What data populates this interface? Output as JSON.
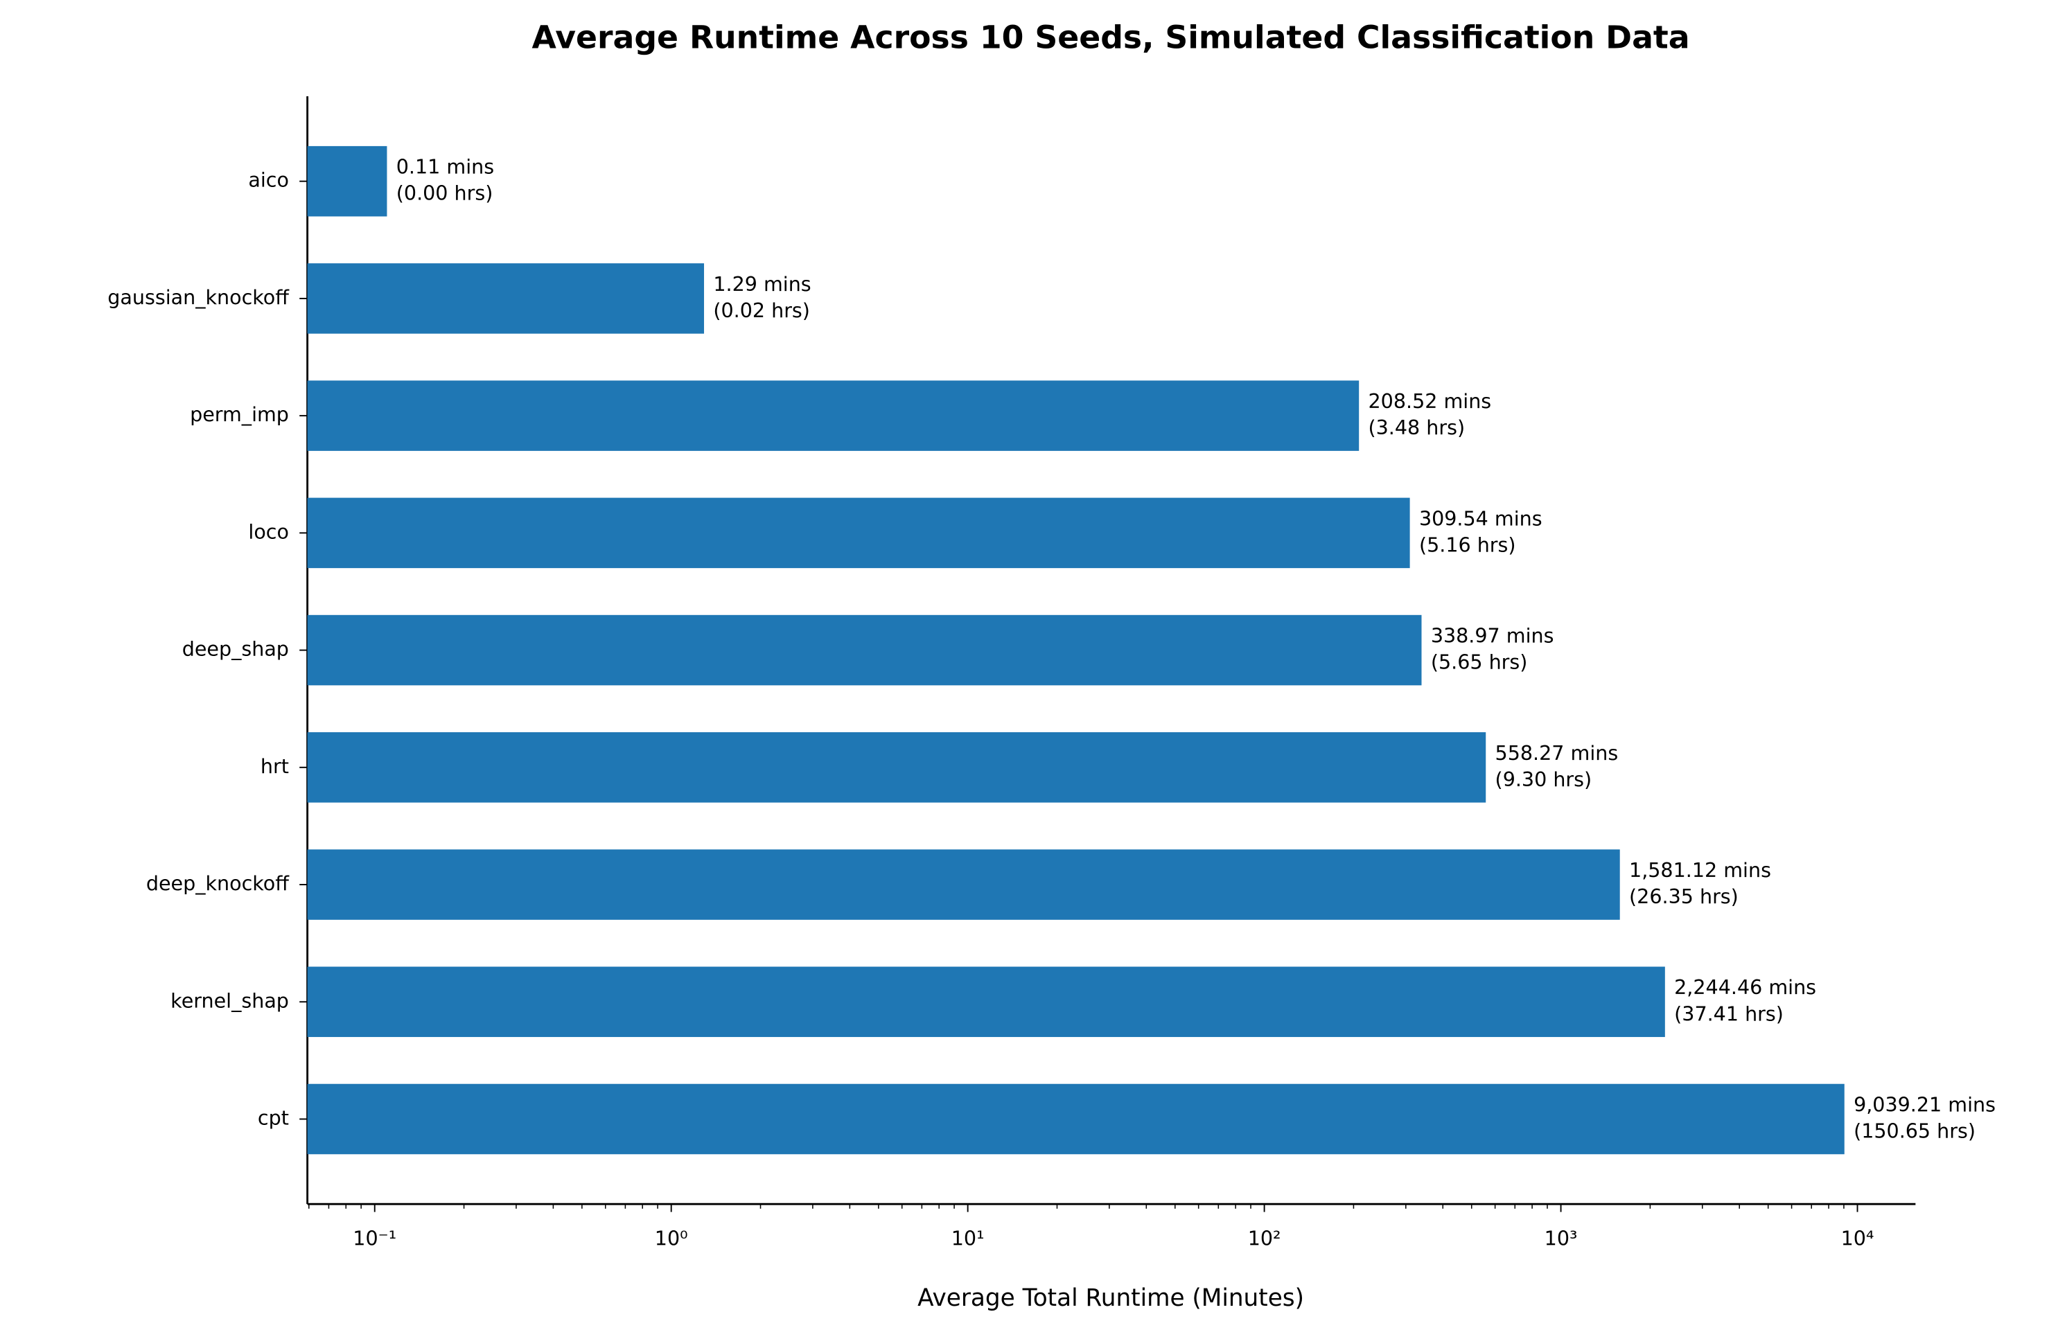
{
  "chart_data": {
    "type": "barh",
    "title": "Average Runtime Across 10 Seeds, Simulated Classification Data",
    "x_label": "Average Total Runtime (Minutes)",
    "categories": [
      "aico",
      "gaussian_knockoff",
      "perm_imp",
      "loco",
      "deep_shap",
      "hrt",
      "deep_knockoff",
      "kernel_shap",
      "cpt"
    ],
    "values": [
      0.11,
      1.29,
      208.52,
      309.54,
      338.97,
      558.27,
      1581.12,
      2244.46,
      9039.21
    ],
    "value_labels": [
      [
        "0.11 mins",
        "(0.00 hrs)"
      ],
      [
        "1.29 mins",
        "(0.02 hrs)"
      ],
      [
        "208.52 mins",
        "(3.48 hrs)"
      ],
      [
        "309.54 mins",
        "(5.16 hrs)"
      ],
      [
        "338.97 mins",
        "(5.65 hrs)"
      ],
      [
        "558.27 mins",
        "(9.30 hrs)"
      ],
      [
        "1,581.12 mins",
        "(26.35 hrs)"
      ],
      [
        "2,244.46 mins",
        "(37.41 hrs)"
      ],
      [
        "9,039.21 mins",
        "(150.65 hrs)"
      ]
    ],
    "color": "#1f77b4",
    "x_scale": "log",
    "xlim": [
      0.0593,
      15700
    ],
    "xticks": [
      {
        "value": 0.1,
        "label": "10⁻¹"
      },
      {
        "value": 1,
        "label": "10⁰"
      },
      {
        "value": 10,
        "label": "10¹"
      },
      {
        "value": 100,
        "label": "10²"
      },
      {
        "value": 1000,
        "label": "10³"
      },
      {
        "value": 10000,
        "label": "10⁴"
      }
    ]
  }
}
